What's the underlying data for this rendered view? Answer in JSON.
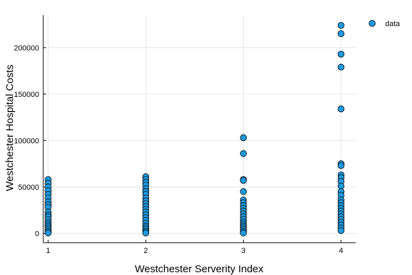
{
  "chart_data": {
    "type": "scatter",
    "title": "",
    "xlabel": "Westchester Serverity Index",
    "ylabel": "Westchester Hospital Costs",
    "xlim": [
      0.95,
      4.15
    ],
    "ylim": [
      -10000,
      235000
    ],
    "xticks": [
      1,
      2,
      3,
      4
    ],
    "xtick_labels": [
      "1",
      "2",
      "3",
      "4"
    ],
    "yticks": [
      0,
      50000,
      100000,
      150000,
      200000
    ],
    "ytick_labels": [
      "0",
      "50000",
      "100000",
      "150000",
      "200000"
    ],
    "grid": true,
    "legend_position": "top-right",
    "marker_color": "#1f9ae0",
    "marker_edge_color": "#000000",
    "series": [
      {
        "name": "data",
        "points": [
          [
            1,
            58000
          ],
          [
            1,
            54000
          ],
          [
            1,
            50000
          ],
          [
            1,
            46000
          ],
          [
            1,
            42000
          ],
          [
            1,
            38000
          ],
          [
            1,
            34000
          ],
          [
            1,
            31000
          ],
          [
            1,
            28000
          ],
          [
            1,
            23000
          ],
          [
            1,
            20000
          ],
          [
            1,
            18000
          ],
          [
            1,
            15000
          ],
          [
            1,
            12000
          ],
          [
            1,
            10000
          ],
          [
            1,
            8000
          ],
          [
            1,
            6000
          ],
          [
            1,
            4000
          ],
          [
            1,
            2000
          ],
          [
            1,
            500
          ],
          [
            2,
            61000
          ],
          [
            2,
            58000
          ],
          [
            2,
            55000
          ],
          [
            2,
            52000
          ],
          [
            2,
            48000
          ],
          [
            2,
            45000
          ],
          [
            2,
            42000
          ],
          [
            2,
            38000
          ],
          [
            2,
            35000
          ],
          [
            2,
            32000
          ],
          [
            2,
            29000
          ],
          [
            2,
            26000
          ],
          [
            2,
            23000
          ],
          [
            2,
            20000
          ],
          [
            2,
            17000
          ],
          [
            2,
            14000
          ],
          [
            2,
            11000
          ],
          [
            2,
            8000
          ],
          [
            2,
            6000
          ],
          [
            2,
            4000
          ],
          [
            2,
            2000
          ],
          [
            2,
            500
          ],
          [
            3,
            103000
          ],
          [
            3,
            86000
          ],
          [
            3,
            58000
          ],
          [
            3,
            57000
          ],
          [
            3,
            45000
          ],
          [
            3,
            36000
          ],
          [
            3,
            33000
          ],
          [
            3,
            30000
          ],
          [
            3,
            27000
          ],
          [
            3,
            24000
          ],
          [
            3,
            21000
          ],
          [
            3,
            18000
          ],
          [
            3,
            15000
          ],
          [
            3,
            12000
          ],
          [
            3,
            10000
          ],
          [
            3,
            8000
          ],
          [
            3,
            6000
          ],
          [
            3,
            4000
          ],
          [
            3,
            2000
          ],
          [
            3,
            500
          ],
          [
            4,
            224000
          ],
          [
            4,
            215000
          ],
          [
            4,
            193000
          ],
          [
            4,
            179000
          ],
          [
            4,
            134000
          ],
          [
            4,
            75000
          ],
          [
            4,
            73000
          ],
          [
            4,
            63000
          ],
          [
            4,
            60000
          ],
          [
            4,
            56000
          ],
          [
            4,
            51000
          ],
          [
            4,
            45000
          ],
          [
            4,
            41000
          ],
          [
            4,
            36000
          ],
          [
            4,
            33000
          ],
          [
            4,
            30000
          ],
          [
            4,
            27000
          ],
          [
            4,
            24000
          ],
          [
            4,
            21000
          ],
          [
            4,
            18000
          ],
          [
            4,
            15000
          ],
          [
            4,
            12000
          ],
          [
            4,
            9000
          ],
          [
            4,
            6000
          ],
          [
            4,
            3000
          ]
        ]
      }
    ]
  }
}
